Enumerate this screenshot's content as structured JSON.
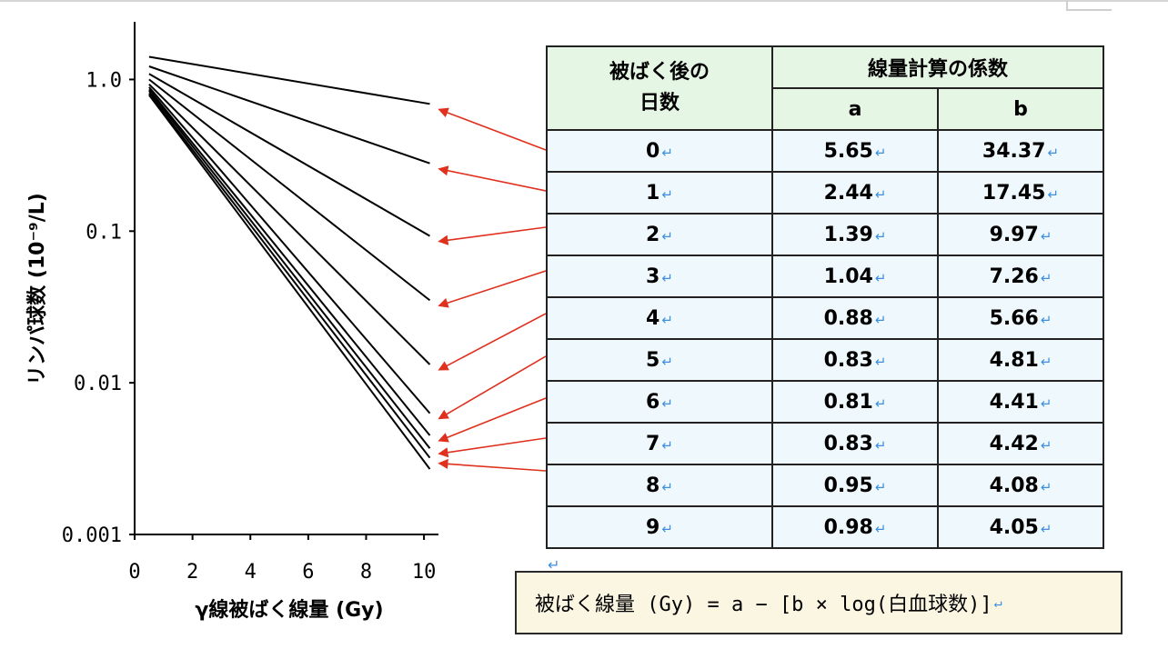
{
  "chart_data": {
    "type": "line",
    "xlabel": "γ線被ばく線量 (Gy)",
    "ylabel": "リンパ球数 (10⁻⁹/L)",
    "y_scale": "log",
    "xlim": [
      0,
      10.5
    ],
    "ylim": [
      0.001,
      2.4
    ],
    "x_ticks": [
      "0",
      "2",
      "4",
      "6",
      "8",
      "10"
    ],
    "y_ticks": [
      "1.0",
      "0.1",
      "0.01",
      "0.001"
    ],
    "x_tick_values": [
      0,
      2,
      4,
      6,
      8,
      10
    ],
    "y_tick_values": [
      1.0,
      0.1,
      0.01,
      0.001
    ],
    "grid": false,
    "series": [
      {
        "x": [
          0.5,
          10.2
        ],
        "y": [
          1.41,
          0.69
        ]
      },
      {
        "x": [
          0.5,
          10.2
        ],
        "y": [
          1.22,
          0.28
        ]
      },
      {
        "x": [
          0.5,
          10.2
        ],
        "y": [
          1.09,
          0.093
        ]
      },
      {
        "x": [
          0.5,
          10.2
        ],
        "y": [
          1.0,
          0.035
        ]
      },
      {
        "x": [
          0.5,
          10.2
        ],
        "y": [
          0.93,
          0.0132
        ]
      },
      {
        "x": [
          0.5,
          10.2
        ],
        "y": [
          0.89,
          0.0063
        ]
      },
      {
        "x": [
          0.5,
          10.2
        ],
        "y": [
          0.86,
          0.0045
        ]
      },
      {
        "x": [
          0.5,
          10.2
        ],
        "y": [
          0.84,
          0.0037
        ]
      },
      {
        "x": [
          0.5,
          10.2
        ],
        "y": [
          0.81,
          0.0032
        ]
      },
      {
        "x": [
          0.5,
          10.2
        ],
        "y": [
          0.79,
          0.0027
        ]
      }
    ],
    "line_color": "#000000",
    "arrow_color": "#e0301e"
  },
  "table": {
    "header_days": "被ばく後の日数",
    "header_days_line1": "被ばく後の",
    "header_days_line2": "日数",
    "header_coef": "線量計算の係数",
    "header_a": "a",
    "header_b": "b",
    "rows": [
      {
        "day": "0",
        "a": "5.65",
        "b": "34.37"
      },
      {
        "day": "1",
        "a": "2.44",
        "b": "17.45"
      },
      {
        "day": "2",
        "a": "1.39",
        "b": "9.97"
      },
      {
        "day": "3",
        "a": "1.04",
        "b": "7.26"
      },
      {
        "day": "4",
        "a": "0.88",
        "b": "5.66"
      },
      {
        "day": "5",
        "a": "0.83",
        "b": "4.81"
      },
      {
        "day": "6",
        "a": "0.81",
        "b": "4.41"
      },
      {
        "day": "7",
        "a": "0.83",
        "b": "4.42"
      },
      {
        "day": "8",
        "a": "0.95",
        "b": "4.08"
      },
      {
        "day": "9",
        "a": "0.98",
        "b": "4.05"
      }
    ],
    "header_bg": "#e6f6e4",
    "body_bg": "#eef8fd"
  },
  "formula": "被ばく線量 (Gy) = a − [b × log(白血球数)]",
  "colors": {
    "format_mark": "#3f8fdf"
  }
}
